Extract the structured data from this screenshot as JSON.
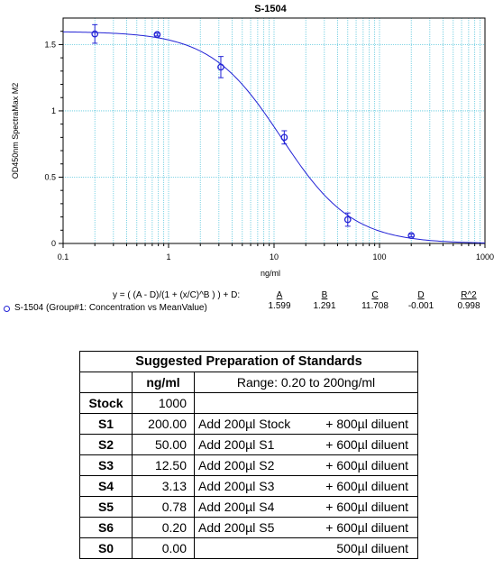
{
  "chart_data": {
    "type": "scatter",
    "title": "S-1504",
    "xlabel": "ng/ml",
    "ylabel": "OD450nm SpectraMax M2",
    "x_scale": "log",
    "xlim": [
      0.1,
      1000
    ],
    "ylim": [
      0,
      1.7
    ],
    "x_ticks": [
      "0.1",
      "1",
      "10",
      "100",
      "1000"
    ],
    "y_ticks": [
      "0",
      "0.5",
      "1",
      "1.5"
    ],
    "grid": true,
    "series": [
      {
        "name": "S-1504 (Group#1: Concentration vs MeanValue)",
        "color": "#2323d6",
        "x": [
          0.2,
          0.78,
          3.13,
          12.5,
          50,
          200
        ],
        "y": [
          1.58,
          1.575,
          1.33,
          0.8,
          0.18,
          0.06
        ],
        "err": [
          0.07,
          0.01,
          0.08,
          0.05,
          0.05,
          0.01
        ]
      }
    ],
    "fit": {
      "equation": "y = ( (A - D)/(1 + (x/C)^B ) ) + D:",
      "params": [
        {
          "name": "A",
          "value": "1.599",
          "num": 1.599
        },
        {
          "name": "B",
          "value": "1.291",
          "num": 1.291
        },
        {
          "name": "C",
          "value": "11.708",
          "num": 11.708
        },
        {
          "name": "D",
          "value": "-0.001",
          "num": -0.001
        },
        {
          "name": "R^2",
          "value": "0.998"
        }
      ]
    }
  },
  "table": {
    "title": "Suggested Preparation of Standards",
    "conc_header": "ng/ml",
    "range": "Range: 0.20 to 200ng/ml",
    "rows": [
      {
        "id": "Stock",
        "conc": "1000",
        "step": "",
        "diluent": ""
      },
      {
        "id": "S1",
        "conc": "200.00",
        "step": "Add 200µl Stock",
        "diluent": "+ 800µl diluent"
      },
      {
        "id": "S2",
        "conc": "50.00",
        "step": "Add 200µl S1",
        "diluent": "+ 600µl diluent"
      },
      {
        "id": "S3",
        "conc": "12.50",
        "step": "Add 200µl S2",
        "diluent": "+ 600µl diluent"
      },
      {
        "id": "S4",
        "conc": "3.13",
        "step": "Add 200µl S3",
        "diluent": "+ 600µl diluent"
      },
      {
        "id": "S5",
        "conc": "0.78",
        "step": "Add 200µl S4",
        "diluent": "+ 600µl diluent"
      },
      {
        "id": "S6",
        "conc": "0.20",
        "step": "Add 200µl S5",
        "diluent": "+ 600µl diluent"
      },
      {
        "id": "S0",
        "conc": "0.00",
        "step": "",
        "diluent": "500µl diluent"
      }
    ]
  }
}
